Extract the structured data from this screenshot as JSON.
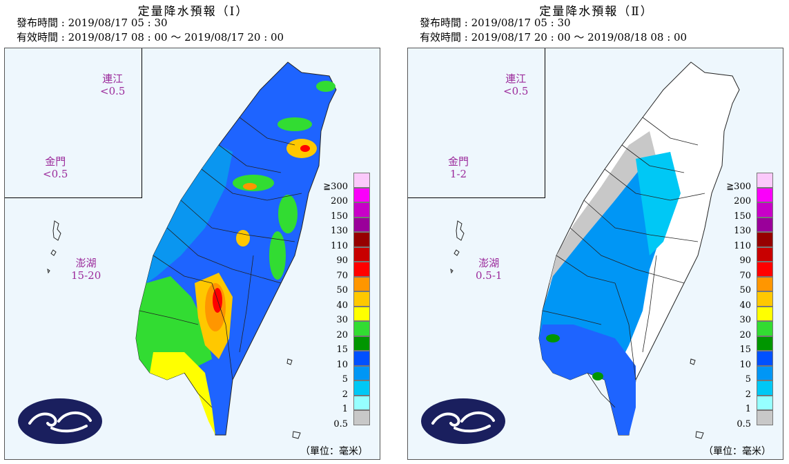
{
  "panels": [
    {
      "title": "定量降水預報（Ⅰ）",
      "issue_line": "發布時間 : 2019/08/17 05 : 30",
      "valid_line": "有效時間 : 2019/08/17 08 : 00 ～ 2019/08/17 20 : 00",
      "islands": [
        {
          "name": "連江",
          "value": "<0.5"
        },
        {
          "name": "金門",
          "value": "<0.5"
        },
        {
          "name": "澎湖",
          "value": "15-20"
        }
      ],
      "unit": "（單位：毫米）"
    },
    {
      "title": "定量降水預報（Ⅱ）",
      "issue_line": "發布時間 : 2019/08/17 05 : 30",
      "valid_line": "有效時間 : 2019/08/17 20 : 00 ～ 2019/08/18 08 : 00",
      "islands": [
        {
          "name": "連江",
          "value": "<0.5"
        },
        {
          "name": "金門",
          "value": "1-2"
        },
        {
          "name": "澎湖",
          "value": "0.5-1"
        }
      ],
      "unit": "（單位：毫米）"
    }
  ],
  "legend": {
    "labels": [
      "≧300",
      "200",
      "150",
      "130",
      "110",
      "90",
      "70",
      "50",
      "40",
      "30",
      "20",
      "15",
      "10",
      "5",
      "2",
      "1",
      "0.5"
    ],
    "colors": [
      "#fbc9fb",
      "#fa00fa",
      "#c800c8",
      "#9a009a",
      "#960000",
      "#c80000",
      "#ff0000",
      "#ff9600",
      "#ffc800",
      "#ffff00",
      "#32dc32",
      "#009600",
      "#0050ff",
      "#0096f5",
      "#00c8f5",
      "#96ffff",
      "#c8c8c8"
    ]
  }
}
